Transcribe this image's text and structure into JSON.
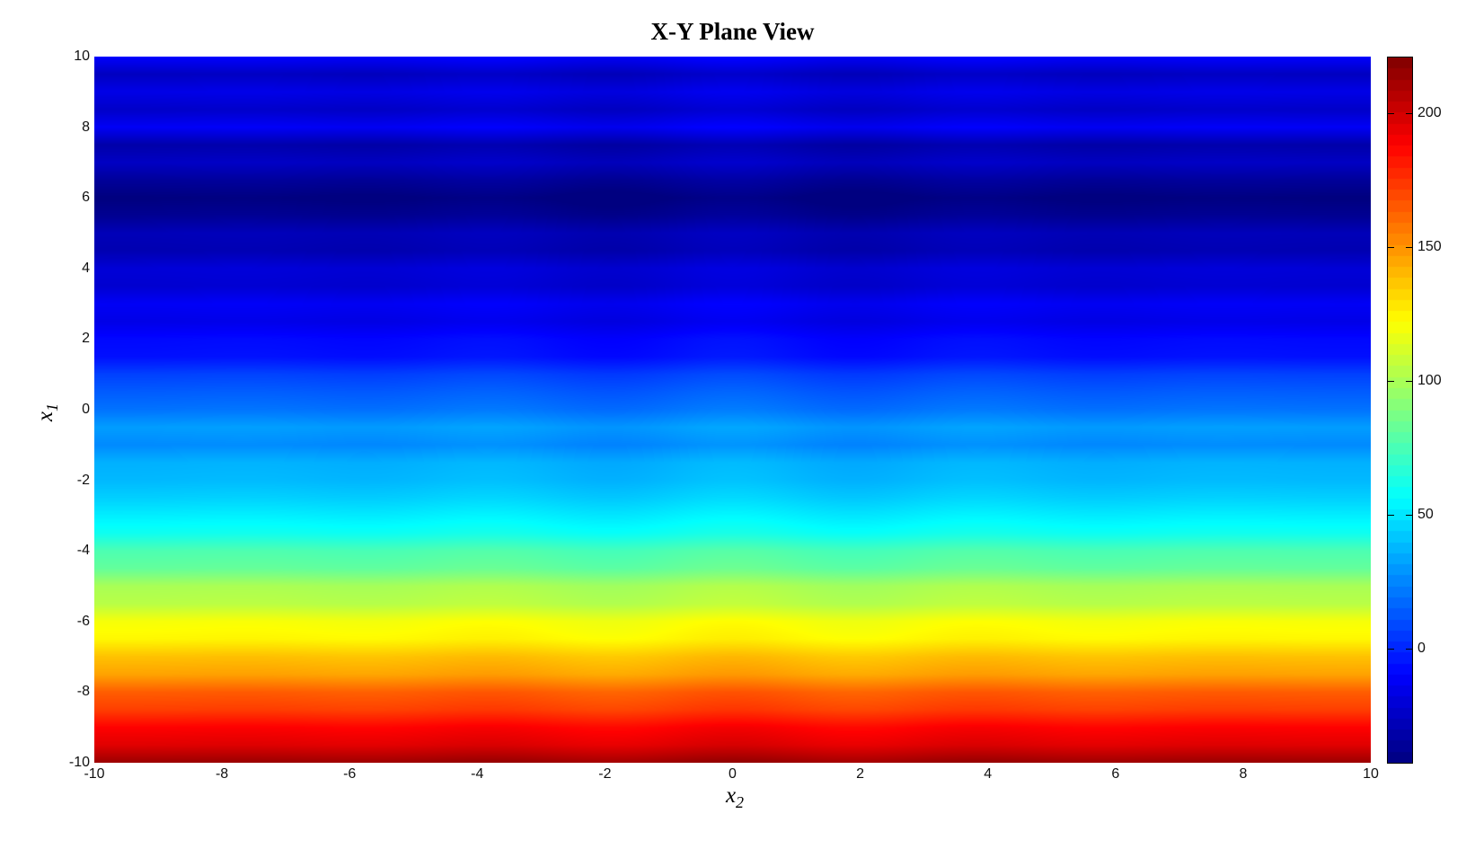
{
  "figure": {
    "background": "#ffffff"
  },
  "chart_data": {
    "type": "heatmap",
    "title": "X-Y Plane View",
    "xlabel": "x",
    "xlabel_sub": "2",
    "ylabel": "x",
    "ylabel_sub": "1",
    "x_range": [
      -10,
      10
    ],
    "y_range": [
      -10,
      10
    ],
    "x_ticks": [
      "-10",
      "-8",
      "-6",
      "-4",
      "-2",
      "0",
      "2",
      "4",
      "6",
      "8",
      "10"
    ],
    "y_ticks": [
      "10",
      "8",
      "6",
      "4",
      "2",
      "0",
      "-2",
      "-4",
      "-6",
      "-8",
      "-10"
    ],
    "grid": false,
    "legend": "none",
    "colormap": "jet",
    "color_min": -43,
    "color_max": 221,
    "colorbar_ticks": [
      200,
      150,
      100,
      50,
      0
    ],
    "colorbar_steps": 64,
    "pattern": "horizontal color bands; value depends almost entirely on x1, oscillating with period 1 about a trend that falls from ~214 at x1=-10 to a minimum ~-43 near x1=6",
    "x1_profile": {
      "x1": [
        -10,
        -9.5,
        -9,
        -8.5,
        -8,
        -7.5,
        -7,
        -6.5,
        -6,
        -5.5,
        -5,
        -4.5,
        -4,
        -3.5,
        -3,
        -2.5,
        -2,
        -1.5,
        -1,
        -0.5,
        0,
        0.5,
        1,
        1.5,
        2,
        2.5,
        3,
        3.5,
        4,
        4.5,
        5,
        5.5,
        6,
        6.5,
        7,
        7.5,
        8,
        8.5,
        9,
        9.5,
        10
      ],
      "value": [
        214,
        196,
        188,
        172,
        164,
        146,
        138,
        124,
        120,
        104,
        100,
        82,
        76,
        60,
        52,
        44,
        38,
        36,
        26,
        31,
        20,
        14,
        7,
        -6,
        -8,
        -16,
        -12,
        -22,
        -20,
        -30,
        -28,
        -38,
        -43,
        -36,
        -25,
        -32,
        -12,
        -24,
        -16,
        -26,
        -10
      ]
    },
    "x2_modulation": {
      "amplitude": 2.5,
      "description": "faint ripple along x2, strongest near x2=0, fading toward the edges"
    }
  }
}
